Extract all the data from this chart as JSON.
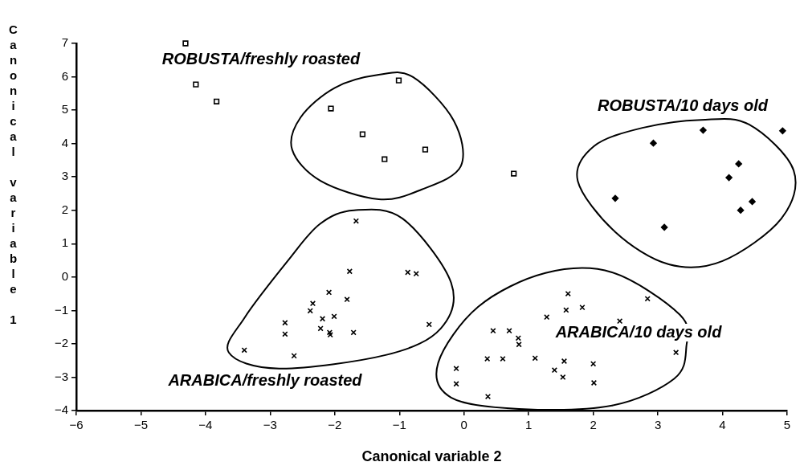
{
  "chart_data": {
    "type": "scatter",
    "xlabel": "Canonical variable 2",
    "ylabel": "Canonical variable 1",
    "xlim": [
      -6,
      5
    ],
    "ylim": [
      -4,
      7
    ],
    "xticks": [
      -6,
      -5,
      -4,
      -3,
      -2,
      -1,
      0,
      1,
      2,
      3,
      4,
      5
    ],
    "yticks": [
      -4,
      -3,
      -2,
      -1,
      0,
      1,
      2,
      3,
      4,
      5,
      6,
      7
    ],
    "grid": false,
    "legend": false,
    "series": [
      {
        "name": "ROBUSTA/freshly roasted",
        "color": "#000000",
        "marker": "square",
        "x": [
          -4.31,
          -4.15,
          -3.83,
          -2.06,
          -1.57,
          -1.01,
          -1.23,
          -0.6,
          0.77
        ],
        "values": [
          7.0,
          5.77,
          5.26,
          5.05,
          4.28,
          5.89,
          3.53,
          3.82,
          3.1
        ]
      },
      {
        "name": "ROBUSTA/10 days old",
        "color": "#000000",
        "marker": "diamond",
        "x": [
          3.7,
          2.93,
          4.93,
          4.25,
          4.1,
          2.34,
          4.46,
          4.28,
          3.1
        ],
        "values": [
          4.4,
          4.01,
          4.38,
          3.39,
          2.98,
          2.36,
          2.26,
          2.0,
          1.49
        ]
      },
      {
        "name": "ARABICA/freshly roasted",
        "color": "#000000",
        "marker": "cross",
        "x": [
          -1.67,
          -1.77,
          -0.87,
          -0.74,
          -2.09,
          -1.81,
          -2.34,
          -2.38,
          -2.01,
          -2.19,
          -2.77,
          -2.77,
          -2.22,
          -2.08,
          -2.07,
          -1.71,
          -0.54,
          -3.4,
          -2.63
        ],
        "values": [
          1.68,
          0.17,
          0.14,
          0.1,
          -0.46,
          -0.67,
          -0.79,
          -1.01,
          -1.18,
          -1.25,
          -1.37,
          -1.71,
          -1.54,
          -1.66,
          -1.73,
          -1.66,
          -1.42,
          -2.19,
          -2.36
        ]
      },
      {
        "name": "ARABICA/10 days old",
        "color": "#000000",
        "marker": "cross",
        "x": [
          1.61,
          1.58,
          1.83,
          1.28,
          2.84,
          2.41,
          0.45,
          0.7,
          0.84,
          0.85,
          0.36,
          0.6,
          1.1,
          1.55,
          2.0,
          1.4,
          1.53,
          2.01,
          -0.12,
          -0.12,
          0.37,
          3.28
        ],
        "values": [
          -0.5,
          -0.99,
          -0.91,
          -1.2,
          -0.65,
          -1.32,
          -1.61,
          -1.61,
          -1.83,
          -2.02,
          -2.45,
          -2.45,
          -2.43,
          -2.52,
          -2.6,
          -2.79,
          -3.0,
          -3.17,
          -2.74,
          -3.2,
          -3.58,
          -2.26
        ]
      }
    ]
  }
}
